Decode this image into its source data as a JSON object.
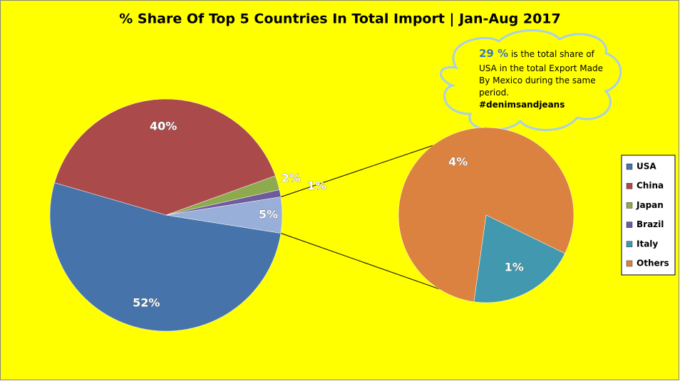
{
  "chart_data": {
    "type": "pie-of-pie",
    "title": "% Share Of Top 5 Countries In Total Import | Jan-Aug 2017",
    "main": {
      "categories": [
        "USA",
        "China",
        "Japan",
        "Brazil",
        null
      ],
      "values": [
        52,
        40,
        2,
        1,
        5
      ],
      "value_labels": [
        "52%",
        "40%",
        "2%",
        "1%",
        "5%"
      ],
      "colors": [
        "#4674aa",
        "#aa4a4a",
        "#8eaa4e",
        "#6f5a9c",
        "#98afd9"
      ]
    },
    "secondary": {
      "categories": [
        "Italy",
        "Others"
      ],
      "values": [
        1,
        4
      ],
      "value_labels": [
        "1%",
        "4%"
      ],
      "colors": [
        "#4298ae",
        "#dc8240"
      ]
    },
    "annotation": {
      "highlight": "29 %",
      "lines": [
        "is the total share of",
        "USA in the total Export Made",
        "By Mexico during the same",
        "period."
      ],
      "tag": "#denimsandjeans"
    },
    "legend": "right"
  }
}
